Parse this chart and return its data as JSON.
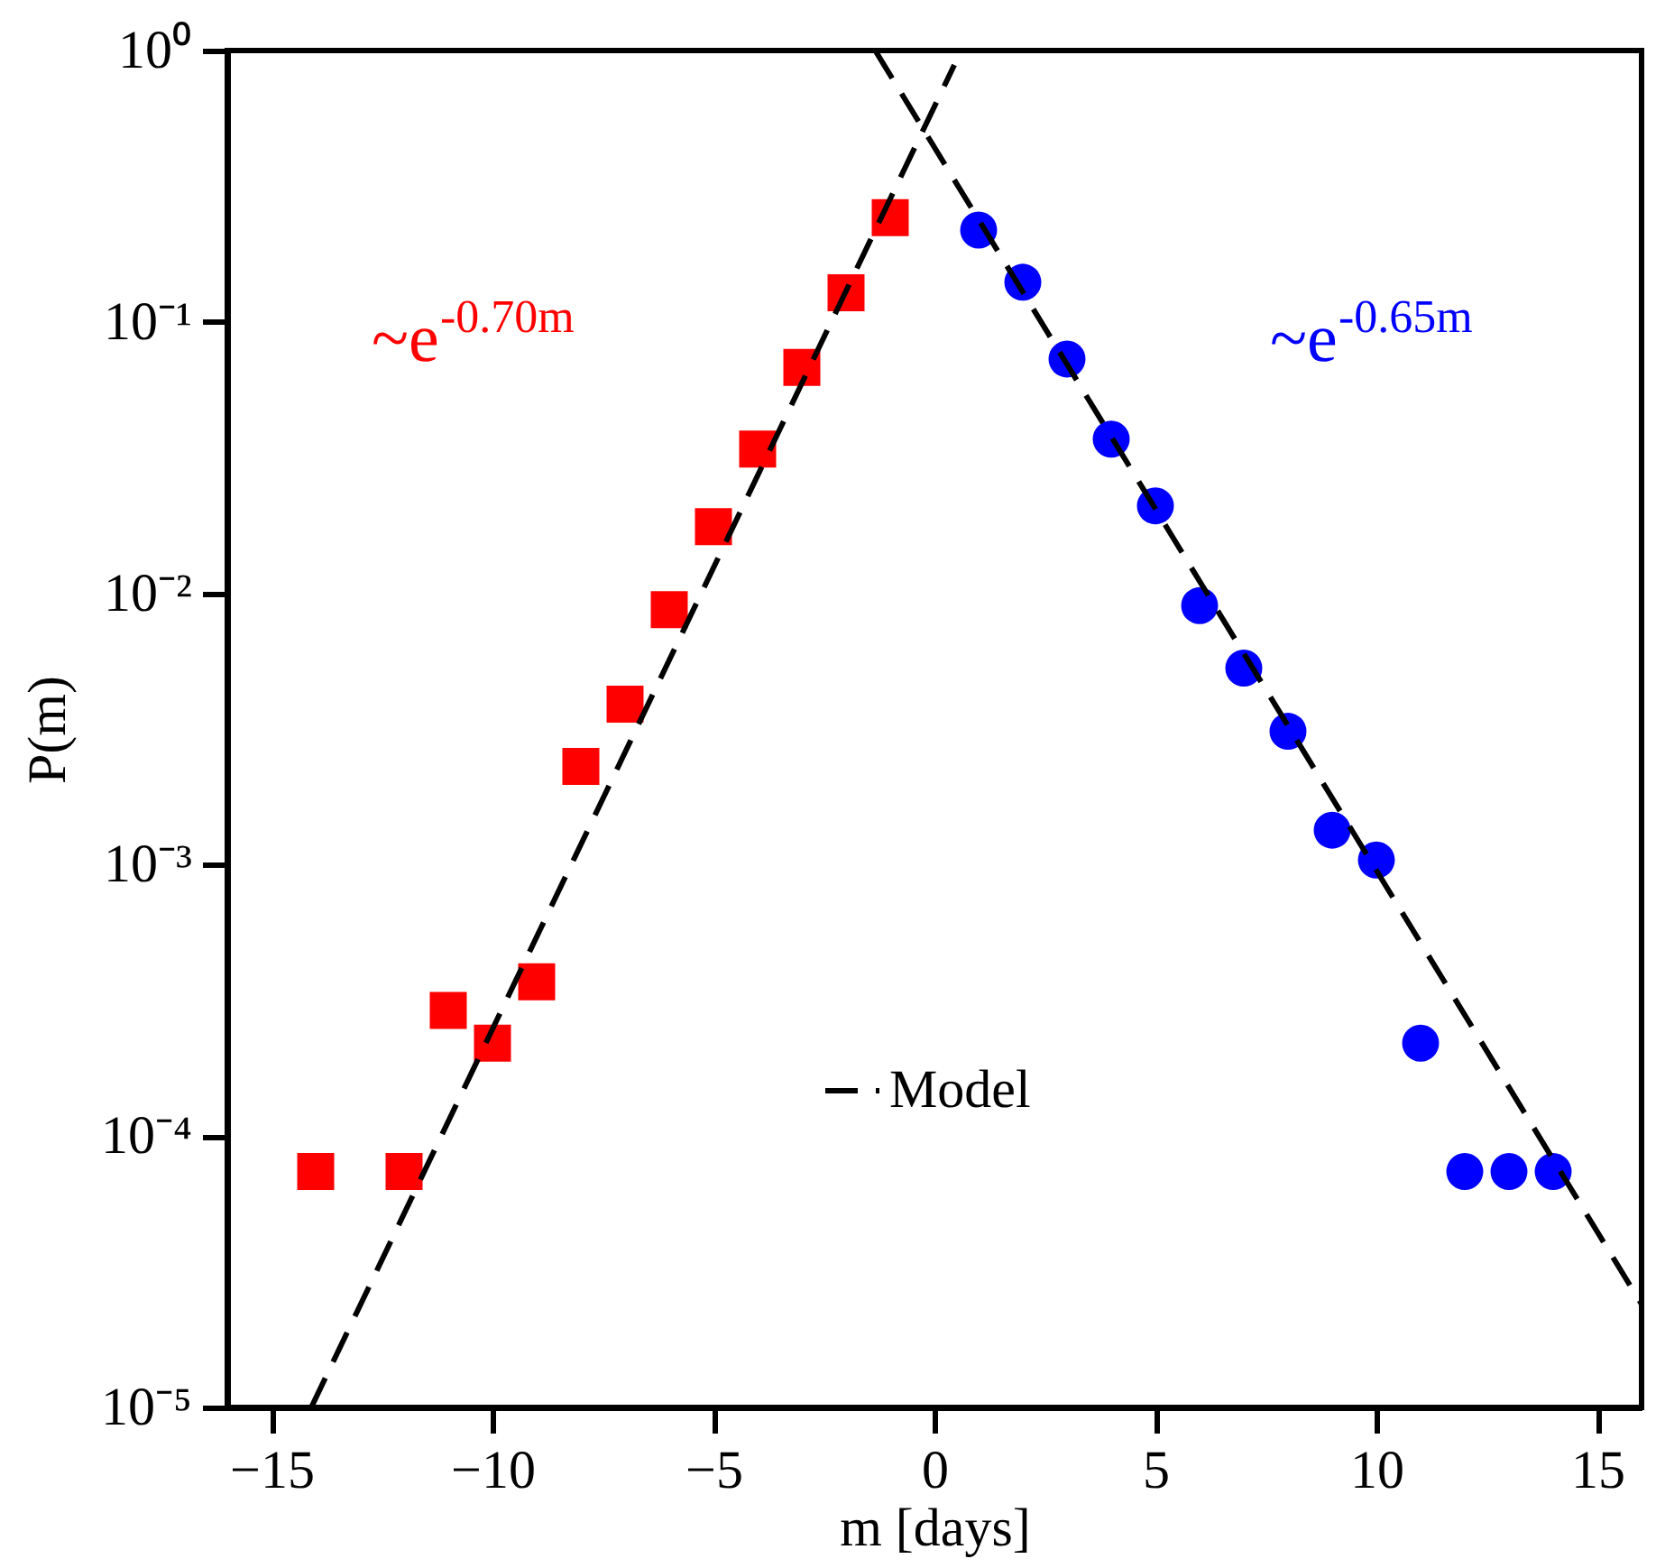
{
  "chart_data": {
    "type": "scatter",
    "xlabel": "m [days]",
    "ylabel": "P(m)",
    "log": "y",
    "legend": "bottom",
    "grid": false,
    "xlim": [
      -16,
      16
    ],
    "xticks": [
      -15,
      -10,
      -5,
      0,
      5,
      10,
      15
    ],
    "ylim": [
      1e-05,
      1
    ],
    "yticks": [
      {
        "value": 1e-05,
        "label": "10⁻⁵"
      },
      {
        "value": 0.0001,
        "label": "10⁻⁴"
      },
      {
        "value": 0.001,
        "label": "10⁻³"
      },
      {
        "value": 0.01,
        "label": "10⁻²"
      },
      {
        "value": 0.1,
        "label": "10⁻¹"
      },
      {
        "value": 1,
        "label": "10⁰"
      }
    ],
    "series": [
      {
        "marker": "square",
        "color": "#ff0000",
        "x": [
          -14,
          -12,
          -11,
          -10,
          -9,
          -8,
          -7,
          -6,
          -5,
          -4,
          -3,
          -2,
          -1
        ],
        "values": [
          7.4e-05,
          7.4e-05,
          0.00029,
          0.00022,
          0.00037,
          0.0023,
          0.0039,
          0.0087,
          0.0176,
          0.034,
          0.068,
          0.128,
          0.242
        ]
      },
      {
        "marker": "circle",
        "color": "#0000ff",
        "x": [
          1,
          2,
          3,
          4,
          5,
          6,
          7,
          8,
          9,
          10,
          11,
          12,
          13,
          14
        ],
        "values": [
          0.218,
          0.14,
          0.073,
          0.037,
          0.021,
          0.009,
          0.0053,
          0.0031,
          0.00134,
          0.00104,
          0.00022,
          7.4e-05,
          7.4e-05,
          7.4e-05
        ]
      },
      {
        "type": "line",
        "name": "Model",
        "line_style": "dashed",
        "color": "#000000",
        "x": [
          -1.34,
          16
        ],
        "values": [
          1,
          2.4e-05
        ]
      },
      {
        "type": "line",
        "line_style": "dashed",
        "color": "#000000",
        "x": [
          -14.1,
          0.45
        ],
        "values": [
          1e-05,
          0.885
        ]
      }
    ],
    "annotations": [
      "~e$^{-0.70m}$",
      "~e$^{-0.65m}$"
    ]
  }
}
